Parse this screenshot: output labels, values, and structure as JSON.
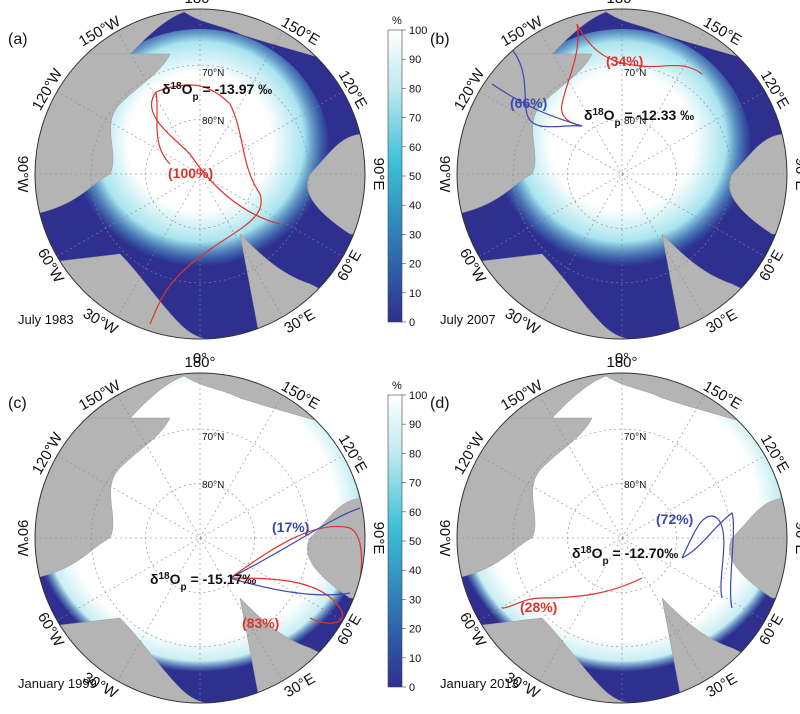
{
  "colorbar": {
    "unit": "%",
    "ticks": [
      "100",
      "90",
      "80",
      "70",
      "60",
      "50",
      "40",
      "30",
      "20",
      "10",
      "0"
    ]
  },
  "colors": {
    "land": "#b4b4b4",
    "open_water": "#2e2f8f",
    "full_ice": "#ffffff",
    "path_red": "#e0332b",
    "path_blue": "#3a48b0"
  },
  "lat_labels": [
    "70°N",
    "80°N"
  ],
  "lon_labels": {
    "top": "180°",
    "bottom": "0°",
    "nw1": "150°W",
    "nw2": "120°W",
    "west": "90°W",
    "sw1": "60°W",
    "sw2": "30°W",
    "ne1": "150°E",
    "ne2": "120°E",
    "east": "90°E",
    "se1": "60°E",
    "se2": "30°E"
  },
  "panels": [
    {
      "label": "(a)",
      "date": "July 1983",
      "isotope": "δ18Op = -13.97 ‰",
      "sources": [
        {
          "text": "(100%)",
          "color": "#e0332b"
        }
      ]
    },
    {
      "label": "(b)",
      "date": "July 2007",
      "isotope": "δ18Op = -12.33 ‰",
      "sources": [
        {
          "text": "(34%)",
          "color": "#e0332b"
        },
        {
          "text": "(66%)",
          "color": "#3a48b0"
        }
      ]
    },
    {
      "label": "(c)",
      "date": "January 1999",
      "isotope": "δ18Op = -15.17‰",
      "sources": [
        {
          "text": "(17%)",
          "color": "#3a48b0"
        },
        {
          "text": "(83%)",
          "color": "#e0332b"
        }
      ]
    },
    {
      "label": "(d)",
      "date": "January 2013",
      "isotope": "δ18Op = -12.70‰",
      "sources": [
        {
          "text": "(72%)",
          "color": "#3a48b0"
        },
        {
          "text": "(28%)",
          "color": "#e0332b"
        }
      ]
    }
  ]
}
